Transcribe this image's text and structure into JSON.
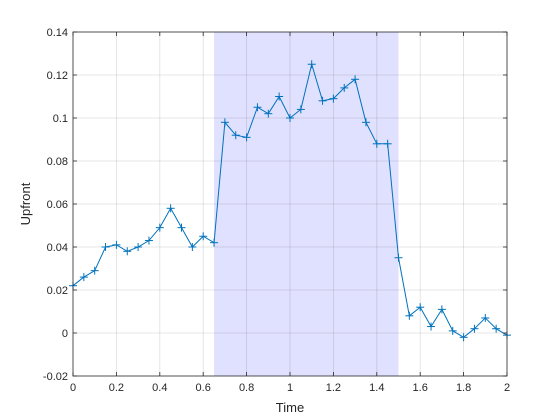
{
  "chart_data": {
    "type": "line",
    "xlabel": "Time",
    "ylabel": "Upfront",
    "xlim": [
      0,
      2
    ],
    "ylim": [
      -0.02,
      0.14
    ],
    "xticks": [
      0,
      0.2,
      0.4,
      0.6,
      0.8,
      1,
      1.2,
      1.4,
      1.6,
      1.8,
      2
    ],
    "xtick_labels": [
      "0",
      "0.2",
      "0.4",
      "0.6",
      "0.8",
      "1",
      "1.2",
      "1.4",
      "1.6",
      "1.8",
      "2"
    ],
    "yticks": [
      -0.02,
      0,
      0.02,
      0.04,
      0.06,
      0.08,
      0.1,
      0.12,
      0.14
    ],
    "ytick_labels": [
      "-0.02",
      "0",
      "0.02",
      "0.04",
      "0.06",
      "0.08",
      "0.1",
      "0.12",
      "0.14"
    ],
    "grid": true,
    "shaded_region": {
      "x_start": 0.65,
      "x_end": 1.5,
      "color": "#e0e0ff"
    },
    "series": [
      {
        "color": "#0072bd",
        "marker": "plus",
        "x": [
          0,
          0.05,
          0.1,
          0.15,
          0.2,
          0.25,
          0.3,
          0.35,
          0.4,
          0.45,
          0.5,
          0.55,
          0.6,
          0.65,
          0.7,
          0.75,
          0.8,
          0.85,
          0.9,
          0.95,
          1.0,
          1.05,
          1.1,
          1.15,
          1.2,
          1.25,
          1.3,
          1.35,
          1.4,
          1.45,
          1.5,
          1.55,
          1.6,
          1.65,
          1.7,
          1.75,
          1.8,
          1.85,
          1.9,
          1.95,
          2.0
        ],
        "y": [
          0.022,
          0.026,
          0.029,
          0.04,
          0.041,
          0.038,
          0.04,
          0.043,
          0.049,
          0.058,
          0.049,
          0.04,
          0.045,
          0.042,
          0.098,
          0.092,
          0.091,
          0.105,
          0.102,
          0.11,
          0.1,
          0.104,
          0.125,
          0.108,
          0.109,
          0.114,
          0.118,
          0.098,
          0.088,
          0.088,
          0.035,
          0.008,
          0.012,
          0.003,
          0.011,
          0.001,
          -0.002,
          0.002,
          0.007,
          0.002,
          -0.001
        ]
      }
    ]
  }
}
